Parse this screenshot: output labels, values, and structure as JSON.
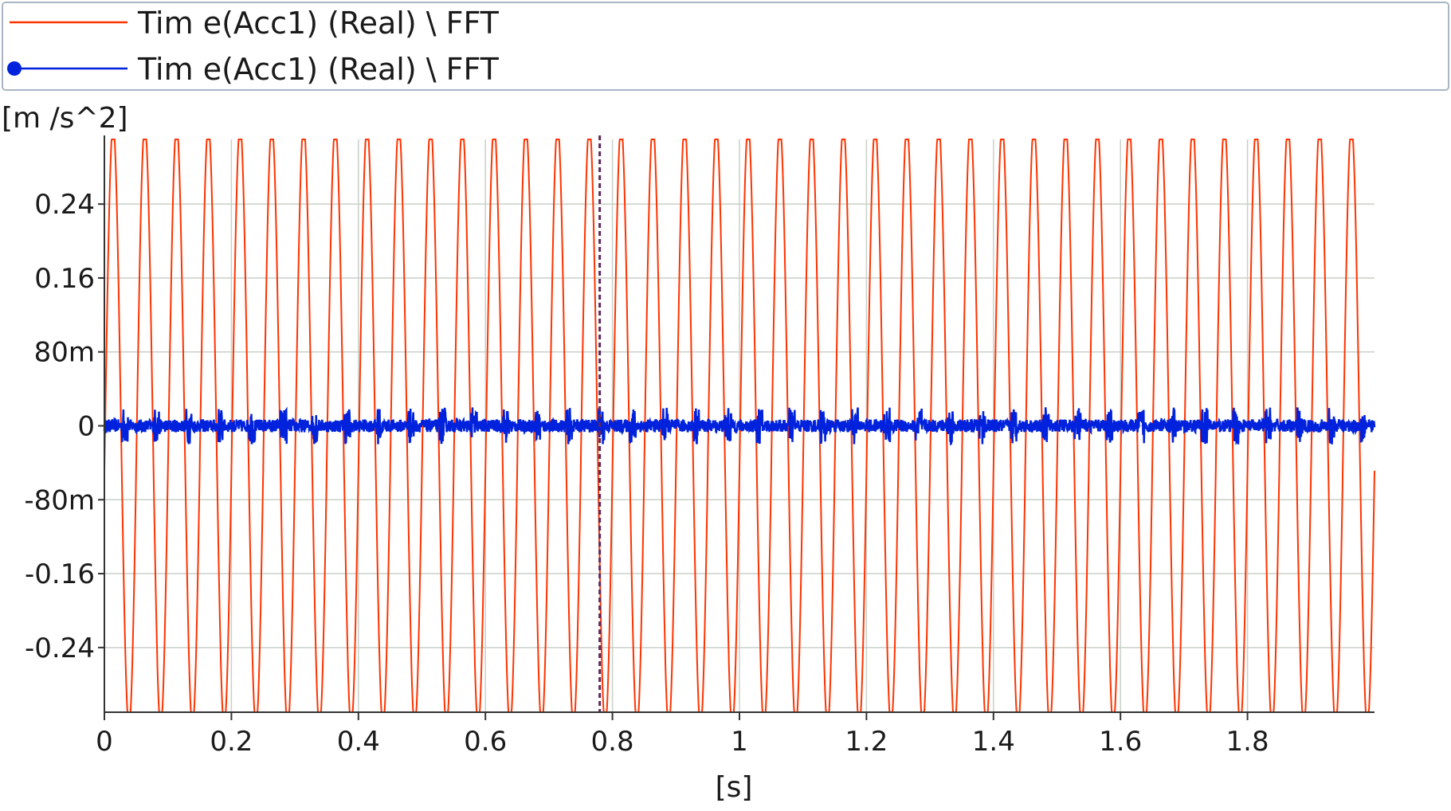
{
  "legend": {
    "items": [
      {
        "label": "Tim e(Acc1) (Real) \\ FFT",
        "color": "#ff3300",
        "marker": "none"
      },
      {
        "label": "Tim e(Acc1) (Real) \\ FFT",
        "color": "#0022dd",
        "marker": "circle"
      }
    ]
  },
  "colors": {
    "series_red": "#ff3300",
    "series_blue": "#0022dd",
    "cursor": "#5a2a5a",
    "grid": "#c8d0c8",
    "axis": "#333333",
    "legend_border": "#a9b5c4"
  },
  "chart_data": {
    "type": "line",
    "title": "",
    "xlabel": "[s]",
    "ylabel": "[m /s^2]",
    "xlim": [
      0,
      2.0
    ],
    "ylim": [
      -0.31,
      0.31
    ],
    "x_ticks": [
      {
        "value": 0,
        "label": "0"
      },
      {
        "value": 0.2,
        "label": "0.2"
      },
      {
        "value": 0.4,
        "label": "0.4"
      },
      {
        "value": 0.6,
        "label": "0.6"
      },
      {
        "value": 0.8,
        "label": "0.8"
      },
      {
        "value": 1.0,
        "label": "1"
      },
      {
        "value": 1.2,
        "label": "1.2"
      },
      {
        "value": 1.4,
        "label": "1.4"
      },
      {
        "value": 1.6,
        "label": "1.6"
      },
      {
        "value": 1.8,
        "label": "1.8"
      }
    ],
    "y_ticks": [
      {
        "value": 0.24,
        "label": "0.24"
      },
      {
        "value": 0.16,
        "label": "0.16"
      },
      {
        "value": 0.08,
        "label": "80m"
      },
      {
        "value": 0,
        "label": "0"
      },
      {
        "value": -0.08,
        "label": "-80m"
      },
      {
        "value": -0.16,
        "label": "-0.16"
      },
      {
        "value": -0.24,
        "label": "-0.24"
      }
    ],
    "grid": true,
    "legend_position": "top",
    "cursor_x": 0.78,
    "series": [
      {
        "name": "Tim e(Acc1) (Real) \\ FFT",
        "color": "#ff3300",
        "shape": "sinusoid",
        "amplitude": 0.31,
        "frequency_hz": 20,
        "x_range": [
          0,
          2.0
        ]
      },
      {
        "name": "Tim e(Acc1) (Real) \\ FFT",
        "color": "#0022dd",
        "shape": "noise_around_zero",
        "amplitude": 0.025,
        "x_range": [
          0,
          2.0
        ]
      }
    ]
  }
}
